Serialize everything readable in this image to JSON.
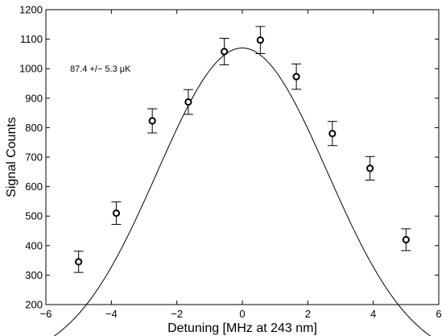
{
  "chart_data": {
    "type": "scatter",
    "title": "",
    "xlabel": "Detuning [MHz at 243 nm]",
    "ylabel": "Signal Counts",
    "xlim": [
      -6,
      6
    ],
    "ylim": [
      200,
      1200
    ],
    "xticks": [
      -6,
      -4,
      -2,
      0,
      2,
      4,
      6
    ],
    "yticks": [
      200,
      300,
      400,
      500,
      600,
      700,
      800,
      900,
      1000,
      1100,
      1200
    ],
    "xtick_labels": [
      "−6",
      "−4",
      "−2",
      "0",
      "2",
      "4",
      "6"
    ],
    "ytick_labels": [
      "200",
      "300",
      "400",
      "500",
      "600",
      "700",
      "800",
      "900",
      "1000",
      "1100",
      "1200"
    ],
    "grid": false,
    "annotation": "87.4 +/− 5.3 μK",
    "series": [
      {
        "kind": "points_with_error_bars",
        "marker": "open-circle",
        "color": "#000000",
        "x": [
          -5.0,
          -3.85,
          -2.75,
          -1.65,
          -0.55,
          0.55,
          1.65,
          2.75,
          3.9,
          5.0
        ],
        "y": [
          345,
          510,
          823,
          887,
          1058,
          1097,
          973,
          780,
          662,
          420
        ],
        "yerr": [
          36,
          38,
          41,
          42,
          45,
          46,
          43,
          41,
          40,
          37
        ]
      },
      {
        "kind": "fit_curve",
        "form": "gaussian",
        "color": "#000000",
        "amplitude": 1070,
        "center": 0,
        "sigma": 2.6,
        "offset": 0
      }
    ]
  }
}
